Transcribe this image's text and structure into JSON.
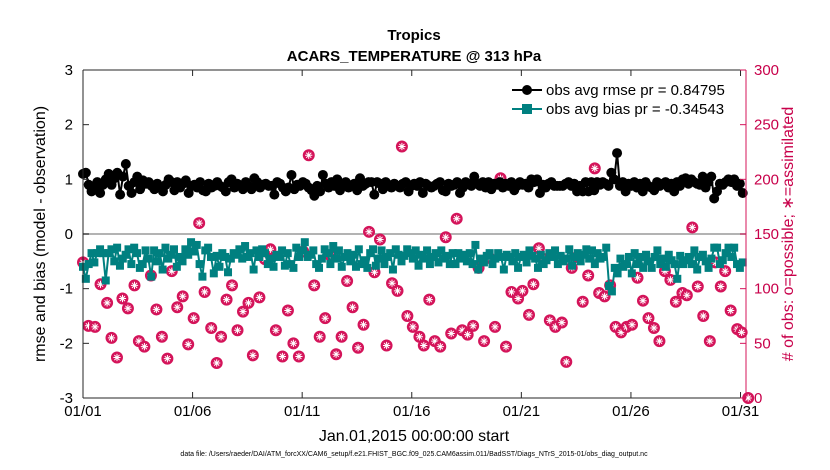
{
  "chart_data": {
    "type": "line",
    "title": "Tropics",
    "subtitle": "ACARS_TEMPERATURE @ 313 hPa",
    "xlabel": "Jan.01,2015 00:00:00 start",
    "ylabel_left": "rmse and bias (model - observation)",
    "ylabel_right": "# of obs: o=possible; ∗=assimilated",
    "x_tick_labels": [
      "01/01",
      "01/06",
      "01/11",
      "01/16",
      "01/21",
      "01/26",
      "01/31"
    ],
    "x_tick_days": [
      1,
      6,
      11,
      16,
      21,
      26,
      31
    ],
    "xlim_days": [
      1,
      31.25
    ],
    "ylim_left": [
      -3,
      3
    ],
    "y_ticks_left": [
      "-3",
      "-2",
      "-1",
      "0",
      "1",
      "2",
      "3"
    ],
    "ylim_right": [
      0,
      300
    ],
    "y_ticks_right": [
      "0",
      "50",
      "100",
      "150",
      "200",
      "250",
      "300"
    ],
    "zero_line": 0,
    "legend_position": "top-right",
    "footnote": "data file: /Users/raeder/DAI/ATM_forcXX/CAM6_setup/f.e21.FHIST_BGC.f09_025.CAM6assim.011/BadSST/Diags_NTrS_2015-01/obs_diag_output.nc",
    "colors": {
      "rmse": "#000000",
      "bias": "#008080",
      "count": "#d4145a",
      "zero_line": "#b3b3b3"
    },
    "series": [
      {
        "name": "obs avg rmse pr = 0.84795",
        "marker": "circle",
        "values": [
          1.1,
          1.12,
          0.9,
          0.78,
          0.85,
          0.95,
          0.75,
          0.9,
          1.0,
          1.1,
          0.9,
          1.02,
          1.12,
          0.72,
          1.05,
          1.28,
          0.88,
          0.75,
          0.95,
          1.05,
          0.82,
          0.98,
          0.92,
          0.95,
          0.88,
          0.82,
          0.92,
          0.85,
          0.78,
          0.9,
          1.0,
          0.95,
          0.8,
          0.95,
          0.85,
          0.92,
          0.98,
          0.75,
          0.88,
          0.9,
          0.85,
          0.95,
          0.8,
          0.78,
          0.92,
          0.85,
          0.88,
          0.95,
          0.88,
          0.85,
          0.78,
          0.95,
          1.0,
          0.85,
          0.92,
          0.88,
          0.82,
          0.95,
          0.88,
          0.82,
          1.02,
          0.95,
          0.85,
          0.9,
          0.92,
          0.88,
          0.88,
          0.72,
          0.95,
          0.92,
          0.85,
          0.78,
          0.85,
          1.08,
          0.82,
          0.9,
          0.88,
          0.95,
          0.92,
          0.85,
          0.8,
          0.7,
          0.88,
          0.78,
          1.08,
          0.92,
          0.85,
          0.95,
          0.88,
          1.0,
          0.8,
          0.92,
          0.95,
          0.85,
          0.88,
          0.92,
          0.8,
          1.02,
          0.88,
          0.92,
          0.95,
          0.95,
          0.72,
          0.95,
          0.92,
          0.82,
          0.95,
          0.88,
          0.85,
          0.92,
          0.88,
          0.85,
          0.92,
          0.95,
          0.78,
          0.88,
          0.92,
          0.88,
          0.95,
          0.75,
          0.92,
          0.88,
          0.85,
          0.88,
          0.92,
          0.95,
          0.8,
          0.78,
          0.92,
          0.88,
          0.9,
          0.95,
          0.75,
          0.85,
          0.95,
          0.92,
          0.88,
          1.05,
          0.92,
          0.88,
          0.95,
          0.85,
          0.95,
          0.82,
          0.92,
          0.9,
          0.95,
          0.85,
          0.92,
          0.88,
          0.95,
          0.8,
          0.88,
          0.95,
          0.9,
          0.92,
          0.85,
          1.0,
          0.95,
          1.0,
          0.75,
          0.9,
          0.85,
          0.92,
          0.95,
          0.88,
          0.88,
          0.88,
          0.88,
          0.92,
          0.95,
          0.88,
          0.92,
          0.78,
          0.88,
          0.78,
          0.95,
          0.78,
          0.95,
          0.8,
          0.95,
          0.9,
          0.95,
          0.92,
          0.88,
          1.12,
          1.0,
          1.48,
          0.88,
          0.95,
          0.78,
          0.92,
          0.88,
          0.95,
          0.85,
          0.92,
          0.78,
          0.95,
          0.88,
          0.85,
          0.8,
          0.95,
          0.88,
          0.92,
          0.95,
          0.85,
          0.92,
          0.78,
          0.95,
          0.88,
          1.0,
          1.02,
          0.92,
          1.0,
          0.95,
          0.92,
          0.9,
          1.05,
          0.85,
          0.95,
          1.05,
          0.65,
          0.78,
          0.92,
          0.9,
          0.95,
          1.0,
          0.95,
          1.0,
          0.88,
          0.92,
          0.75
        ]
      },
      {
        "name": "obs avg bias pr = -0.34543",
        "marker": "square",
        "values": [
          -0.6,
          -0.82,
          -0.55,
          -0.35,
          -0.52,
          -0.35,
          -0.28,
          -0.35,
          -0.85,
          -0.35,
          -0.28,
          -0.5,
          -0.25,
          -0.58,
          -0.45,
          -0.38,
          -0.28,
          -0.55,
          -0.25,
          -0.35,
          -0.62,
          -0.55,
          -0.3,
          -0.45,
          -0.78,
          -0.3,
          -0.5,
          -0.35,
          -0.65,
          -0.25,
          -0.45,
          -0.38,
          -0.28,
          -0.6,
          -0.42,
          -0.5,
          -0.28,
          -0.38,
          -0.15,
          -0.32,
          -0.2,
          -0.55,
          -0.78,
          -0.3,
          -0.25,
          -0.42,
          -0.72,
          -0.4,
          -0.6,
          -0.35,
          -0.42,
          -0.7,
          -0.45,
          -0.35,
          -0.38,
          -0.28,
          -0.45,
          -0.22,
          -0.42,
          -0.35,
          -0.65,
          -0.3,
          -0.42,
          -0.28,
          -0.35,
          -0.55,
          -0.45,
          -0.6,
          -0.38,
          -0.42,
          -0.3,
          -0.58,
          -0.35,
          -0.55,
          -0.62,
          -0.25,
          -0.42,
          -0.3,
          -0.15,
          -0.42,
          -0.38,
          -0.3,
          -0.55,
          -0.62,
          -0.45,
          -0.28,
          -0.35,
          -0.55,
          -0.22,
          -0.45,
          -0.3,
          -0.6,
          -0.42,
          -0.35,
          -0.5,
          -0.38,
          -0.6,
          -0.28,
          -0.55,
          -0.48,
          -0.62,
          -0.35,
          -0.28,
          -0.58,
          -0.45,
          -0.3,
          -0.55,
          -0.42,
          -0.35,
          -0.65,
          -0.28,
          -0.38,
          -0.5,
          -0.4,
          -0.28,
          -0.35,
          -0.45,
          -0.3,
          -0.58,
          -0.38,
          -0.45,
          -0.3,
          -0.55,
          -0.42,
          -0.35,
          -0.52,
          -0.3,
          -0.45,
          -0.4,
          -0.55,
          -0.35,
          -0.55,
          -0.35,
          -0.45,
          -0.38,
          -0.5,
          -0.35,
          -0.55,
          -0.2,
          -0.65,
          -0.45,
          -0.52,
          -0.4,
          -0.35,
          -0.55,
          -0.45,
          -0.35,
          -0.42,
          -0.65,
          -0.38,
          -0.42,
          -0.5,
          -0.35,
          -0.62,
          -0.42,
          -0.38,
          -0.52,
          -0.3,
          -0.4,
          -0.45,
          -0.62,
          -0.38,
          -0.55,
          -0.48,
          -0.35,
          -0.42,
          -0.3,
          -0.55,
          -0.4,
          -0.5,
          -0.45,
          -0.28,
          -0.58,
          -0.42,
          -0.35,
          -0.5,
          -0.38,
          -0.28,
          -0.45,
          -0.3,
          -0.55,
          -0.35,
          -0.45,
          -0.42,
          -0.25,
          -0.95,
          -1.05,
          -0.62,
          -0.72,
          -0.45,
          -0.6,
          -0.55,
          -0.42,
          -0.72,
          -0.35,
          -0.55,
          -0.42,
          -0.62,
          -0.38,
          -0.5,
          -0.62,
          -0.42,
          -0.3,
          -0.55,
          -0.45,
          -0.6,
          -0.38,
          -0.48,
          -0.55,
          -0.82,
          -0.4,
          -0.55,
          -0.48,
          -0.42,
          -0.55,
          -0.3,
          -0.65,
          -0.42,
          -0.38,
          -0.5,
          -0.62,
          -0.45,
          -0.25,
          -0.25,
          -0.55,
          -0.48,
          -0.35,
          -0.25,
          -0.42,
          -0.25,
          -0.55,
          -0.62,
          -0.52
        ]
      },
      {
        "name": "# of obs",
        "axis": "right",
        "marker": "circle-star",
        "points": [
          [
            1.0,
            124
          ],
          [
            1.25,
            66
          ],
          [
            1.55,
            65
          ],
          [
            1.8,
            104
          ],
          [
            2.1,
            87
          ],
          [
            2.3,
            55
          ],
          [
            2.55,
            37
          ],
          [
            2.8,
            91
          ],
          [
            3.05,
            82
          ],
          [
            3.35,
            103
          ],
          [
            3.55,
            52
          ],
          [
            3.8,
            47
          ],
          [
            4.1,
            112
          ],
          [
            4.35,
            81
          ],
          [
            4.6,
            56
          ],
          [
            4.85,
            36
          ],
          [
            5.05,
            116
          ],
          [
            5.3,
            83
          ],
          [
            5.55,
            93
          ],
          [
            5.8,
            49
          ],
          [
            6.05,
            73
          ],
          [
            6.3,
            160
          ],
          [
            6.55,
            97
          ],
          [
            6.85,
            64
          ],
          [
            7.1,
            32
          ],
          [
            7.3,
            56
          ],
          [
            7.55,
            90
          ],
          [
            7.8,
            103
          ],
          [
            8.05,
            62
          ],
          [
            8.3,
            79
          ],
          [
            8.55,
            87
          ],
          [
            8.75,
            39
          ],
          [
            9.05,
            92
          ],
          [
            9.3,
            127
          ],
          [
            9.55,
            136
          ],
          [
            9.8,
            62
          ],
          [
            10.1,
            38
          ],
          [
            10.35,
            80
          ],
          [
            10.6,
            50
          ],
          [
            10.85,
            38
          ],
          [
            11.05,
            134
          ],
          [
            11.3,
            222
          ],
          [
            11.55,
            103
          ],
          [
            11.8,
            56
          ],
          [
            12.05,
            73
          ],
          [
            12.3,
            130
          ],
          [
            12.55,
            40
          ],
          [
            12.8,
            56
          ],
          [
            13.05,
            107
          ],
          [
            13.3,
            83
          ],
          [
            13.55,
            46
          ],
          [
            13.8,
            67
          ],
          [
            14.05,
            152
          ],
          [
            14.3,
            115
          ],
          [
            14.55,
            145
          ],
          [
            14.85,
            48
          ],
          [
            15.1,
            105
          ],
          [
            15.35,
            98
          ],
          [
            15.55,
            230
          ],
          [
            15.8,
            75
          ],
          [
            16.05,
            65
          ],
          [
            16.35,
            56
          ],
          [
            16.55,
            48
          ],
          [
            16.8,
            90
          ],
          [
            17.05,
            52
          ],
          [
            17.3,
            47
          ],
          [
            17.55,
            147
          ],
          [
            17.8,
            59
          ],
          [
            18.05,
            164
          ],
          [
            18.3,
            62
          ],
          [
            18.55,
            58
          ],
          [
            18.8,
            66
          ],
          [
            19.05,
            119
          ],
          [
            19.3,
            52
          ],
          [
            19.55,
            128
          ],
          [
            19.8,
            65
          ],
          [
            20.05,
            201
          ],
          [
            20.3,
            47
          ],
          [
            20.55,
            97
          ],
          [
            20.85,
            91
          ],
          [
            21.05,
            98
          ],
          [
            21.35,
            76
          ],
          [
            21.55,
            104
          ],
          [
            21.8,
            137
          ],
          [
            22.05,
            127
          ],
          [
            22.3,
            71
          ],
          [
            22.55,
            65
          ],
          [
            22.85,
            69
          ],
          [
            23.05,
            33
          ],
          [
            23.3,
            119
          ],
          [
            23.55,
            129
          ],
          [
            23.8,
            88
          ],
          [
            24.05,
            112
          ],
          [
            24.35,
            210
          ],
          [
            24.55,
            96
          ],
          [
            24.8,
            93
          ],
          [
            25.05,
            103
          ],
          [
            25.3,
            65
          ],
          [
            25.55,
            60
          ],
          [
            25.8,
            65
          ],
          [
            26.05,
            67
          ],
          [
            26.3,
            110
          ],
          [
            26.55,
            89
          ],
          [
            26.8,
            73
          ],
          [
            27.05,
            64
          ],
          [
            27.3,
            52
          ],
          [
            27.55,
            116
          ],
          [
            27.8,
            108
          ],
          [
            28.05,
            88
          ],
          [
            28.35,
            96
          ],
          [
            28.55,
            94
          ],
          [
            28.8,
            156
          ],
          [
            29.05,
            102
          ],
          [
            29.3,
            75
          ],
          [
            29.6,
            52
          ],
          [
            29.85,
            124
          ],
          [
            30.1,
            102
          ],
          [
            30.3,
            116
          ],
          [
            30.55,
            80
          ],
          [
            30.85,
            63
          ],
          [
            31.05,
            60
          ],
          [
            31.35,
            0
          ]
        ]
      }
    ]
  }
}
